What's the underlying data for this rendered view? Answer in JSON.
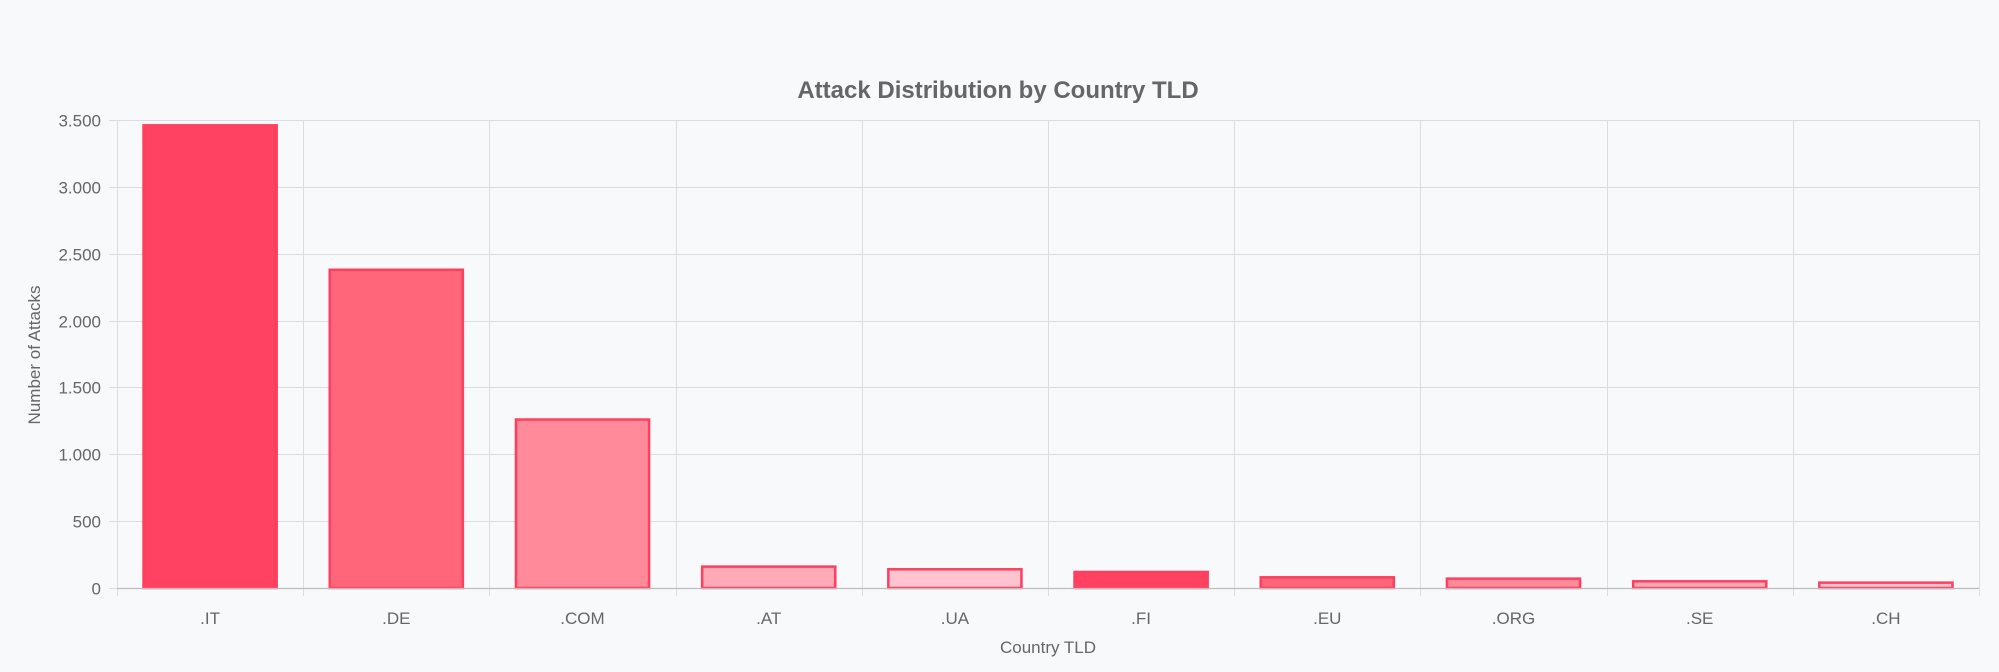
{
  "chart_data": {
    "type": "bar",
    "title": "Attack Distribution by Country TLD",
    "xlabel": "Country TLD",
    "ylabel": "Number of Attacks",
    "categories": [
      ".IT",
      ".DE",
      ".COM",
      ".AT",
      ".UA",
      ".FI",
      ".EU",
      ".ORG",
      ".SE",
      ".CH"
    ],
    "values": [
      3460,
      2380,
      1260,
      160,
      140,
      120,
      80,
      70,
      50,
      40
    ],
    "ylim": [
      0,
      3500
    ],
    "yticks": [
      0,
      500,
      1000,
      1500,
      2000,
      2500,
      3000,
      3500
    ],
    "ytick_labels": [
      "0",
      "500",
      "1.000",
      "1.500",
      "2.000",
      "2.500",
      "3.000",
      "3.500"
    ],
    "grid": true,
    "legend": "none",
    "colors": {
      "bar_fills": [
        "#ff4262",
        "#ff6679",
        "#ff8a99",
        "#ffaab6",
        "#ffc4cf",
        "#ff4262",
        "#ff6679",
        "#ff8a99",
        "#ffaab6",
        "#ffc4cf"
      ],
      "bar_border": "#ff3f5f",
      "grid": "#dcdde1",
      "axis": "#bdbdbd",
      "text": "#666666"
    }
  }
}
